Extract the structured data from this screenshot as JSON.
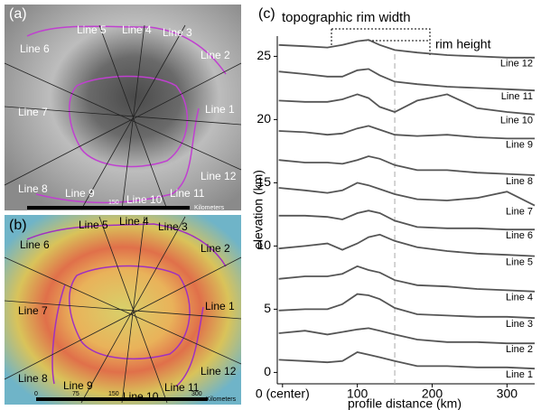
{
  "map_a": {
    "label": "(a)",
    "line_labels": [
      "Line 1",
      "Line 2",
      "Line 3",
      "Line 4",
      "Line 5",
      "Line 6",
      "Line 7",
      "Line 8",
      "Line 9",
      "Line 10",
      "Line 11",
      "Line 12"
    ],
    "scale_labels": [
      "150",
      "Kilometers"
    ]
  },
  "map_b": {
    "label": "(b)",
    "line_labels": [
      "Line 1",
      "Line 2",
      "Line 3",
      "Line 4",
      "Line 5",
      "Line 6",
      "Line 7",
      "Line 8",
      "Line 9",
      "Line 10",
      "Line 11",
      "Line 12"
    ],
    "scale_labels": [
      "0",
      "75",
      "150",
      "300",
      "Kilometers"
    ]
  },
  "chart_data": {
    "type": "line",
    "panel_label": "(c)",
    "annotations": [
      "topographic rim width",
      "rim height"
    ],
    "xlabel": "profile distance (km)",
    "ylabel": "elevation (km)",
    "xlim": [
      -7,
      337
    ],
    "ylim": [
      -0.9,
      26.6
    ],
    "xticks": [
      {
        "value": 0,
        "label": "0 (center)"
      },
      100,
      200,
      300
    ],
    "yticks": [
      0,
      5,
      10,
      15,
      20,
      25
    ],
    "reference_line_x": 150,
    "x": [
      -5,
      30,
      60,
      80,
      100,
      115,
      130,
      150,
      180,
      220,
      260,
      300,
      337
    ],
    "series": [
      {
        "name": "Line 1",
        "color": "#555555",
        "values": [
          1.0,
          0.9,
          0.8,
          0.9,
          1.6,
          1.4,
          1.2,
          0.9,
          0.5,
          0.5,
          0.4,
          0.4,
          0.3
        ]
      },
      {
        "name": "Line 2",
        "color": "#555555",
        "values": [
          3.1,
          3.3,
          3.0,
          3.2,
          3.4,
          3.5,
          3.3,
          3.0,
          2.6,
          2.4,
          2.4,
          2.3,
          2.3
        ]
      },
      {
        "name": "Line 3",
        "color": "#555555",
        "values": [
          4.9,
          5.0,
          5.0,
          5.4,
          6.2,
          6.1,
          5.8,
          5.1,
          4.6,
          4.5,
          4.4,
          4.4,
          4.3
        ]
      },
      {
        "name": "Line 4",
        "color": "#555555",
        "values": [
          7.4,
          7.6,
          7.6,
          7.8,
          8.4,
          8.1,
          7.9,
          7.3,
          6.9,
          6.8,
          6.6,
          6.5,
          6.4
        ]
      },
      {
        "name": "Line 5",
        "color": "#555555",
        "values": [
          9.8,
          10.0,
          10.2,
          9.7,
          10.2,
          10.7,
          10.9,
          10.4,
          9.9,
          9.6,
          9.4,
          9.3,
          9.2
        ]
      },
      {
        "name": "Line 6",
        "color": "#555555",
        "values": [
          12.4,
          12.4,
          12.3,
          12.1,
          12.6,
          12.8,
          12.6,
          12.0,
          11.5,
          11.4,
          11.4,
          11.3,
          11.3
        ]
      },
      {
        "name": "Line 7",
        "color": "#555555",
        "values": [
          14.6,
          14.4,
          14.2,
          14.4,
          15.0,
          14.8,
          14.5,
          14.1,
          13.7,
          13.6,
          13.8,
          14.3,
          13.2
        ]
      },
      {
        "name": "Line 8",
        "color": "#555555",
        "values": [
          16.8,
          16.6,
          16.6,
          16.5,
          16.8,
          17.1,
          16.9,
          16.4,
          16.0,
          16.0,
          15.8,
          15.7,
          15.6
        ]
      },
      {
        "name": "Line 9",
        "color": "#555555",
        "values": [
          19.1,
          19.0,
          18.8,
          18.9,
          19.3,
          19.5,
          19.2,
          18.8,
          18.7,
          18.8,
          18.6,
          18.5,
          18.5
        ]
      },
      {
        "name": "Line 10",
        "color": "#555555",
        "values": [
          21.5,
          21.4,
          21.4,
          21.6,
          22.0,
          21.7,
          21.0,
          20.6,
          21.5,
          22.0,
          20.9,
          20.6,
          20.4
        ]
      },
      {
        "name": "Line 11",
        "color": "#555555",
        "values": [
          23.8,
          23.6,
          23.4,
          23.4,
          23.9,
          24.0,
          23.5,
          23.0,
          22.8,
          22.6,
          22.5,
          22.4,
          22.3
        ]
      },
      {
        "name": "Line 12",
        "color": "#555555",
        "values": [
          25.9,
          25.8,
          25.7,
          25.9,
          26.2,
          26.3,
          25.9,
          25.5,
          25.3,
          25.1,
          25.0,
          24.9,
          24.9
        ]
      }
    ]
  }
}
